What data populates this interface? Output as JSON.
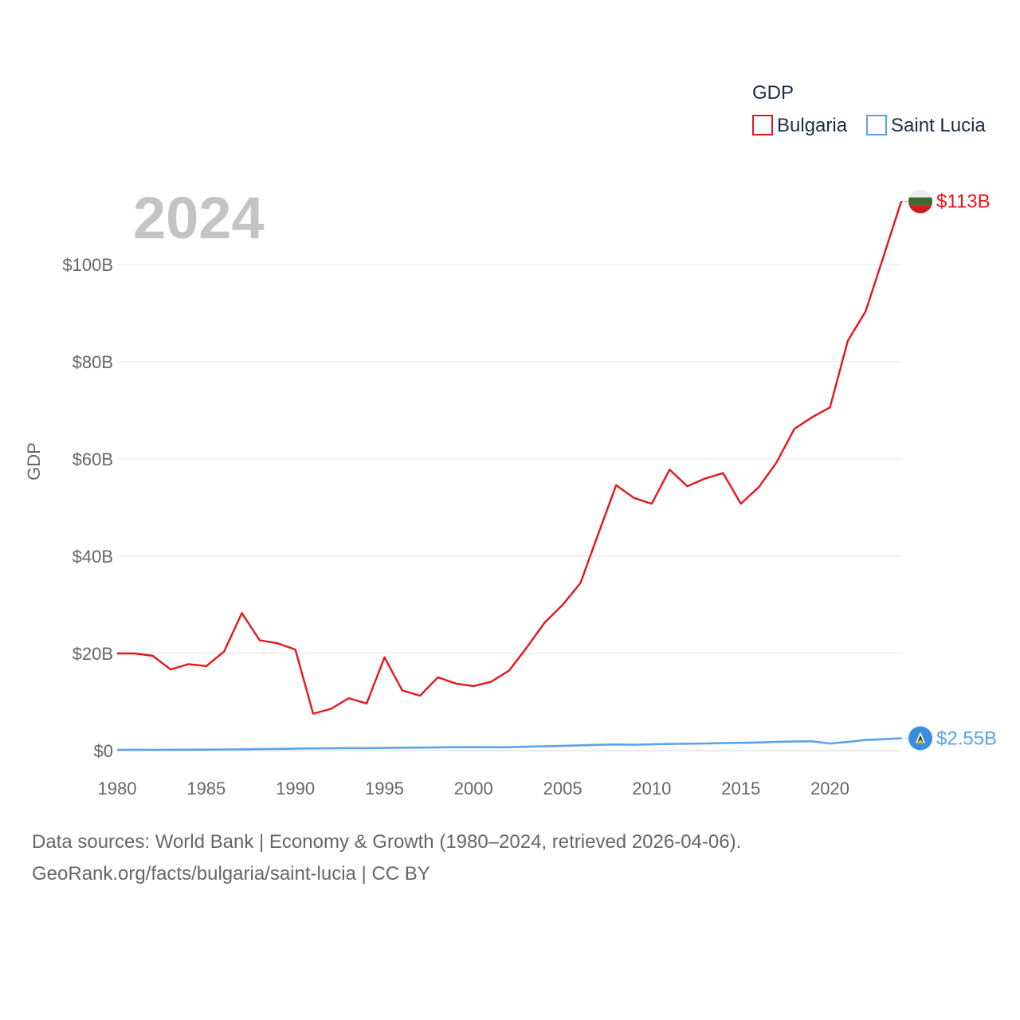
{
  "chart_data": {
    "type": "line",
    "ylabel": "GDP",
    "year_label": "2024",
    "legend": {
      "title": "GDP"
    },
    "x": [
      1980,
      1981,
      1982,
      1983,
      1984,
      1985,
      1986,
      1987,
      1988,
      1989,
      1990,
      1991,
      1992,
      1993,
      1994,
      1995,
      1996,
      1997,
      1998,
      1999,
      2000,
      2001,
      2002,
      2003,
      2004,
      2005,
      2006,
      2007,
      2008,
      2009,
      2010,
      2011,
      2012,
      2013,
      2014,
      2015,
      2016,
      2017,
      2018,
      2019,
      2020,
      2021,
      2022,
      2023,
      2024
    ],
    "xlim": [
      1980,
      2024
    ],
    "ylim": [
      0,
      115
    ],
    "y_unit": "billion USD",
    "x_ticks": [
      "1980",
      "1985",
      "1990",
      "1995",
      "2000",
      "2005",
      "2010",
      "2015",
      "2020"
    ],
    "y_ticks": [
      {
        "value": 0,
        "label": "$0"
      },
      {
        "value": 20,
        "label": "$20B"
      },
      {
        "value": 40,
        "label": "$40B"
      },
      {
        "value": 60,
        "label": "$60B"
      },
      {
        "value": 80,
        "label": "$80B"
      },
      {
        "value": 100,
        "label": "$100B"
      }
    ],
    "series": [
      {
        "name": "Bulgaria",
        "color": "#e8141c",
        "end_label": "$113B",
        "flag_icon": "bulgaria-flag-icon",
        "values": [
          20.0,
          20.0,
          19.5,
          16.7,
          17.8,
          17.4,
          20.4,
          28.3,
          22.7,
          22.1,
          20.8,
          7.6,
          8.6,
          10.8,
          9.7,
          19.2,
          12.4,
          11.3,
          15.1,
          13.8,
          13.3,
          14.2,
          16.5,
          21.3,
          26.4,
          30.0,
          34.5,
          44.6,
          54.6,
          52.0,
          50.8,
          57.8,
          54.4,
          56.0,
          57.1,
          50.8,
          54.2,
          59.3,
          66.2,
          68.6,
          70.6,
          84.3,
          90.4,
          101.6,
          113.0
        ]
      },
      {
        "name": "Saint Lucia",
        "color": "#5ba3e8",
        "end_label": "$2.55B",
        "flag_icon": "saint-lucia-flag-icon",
        "values": [
          0.16,
          0.18,
          0.17,
          0.18,
          0.2,
          0.22,
          0.25,
          0.28,
          0.32,
          0.36,
          0.42,
          0.46,
          0.5,
          0.52,
          0.53,
          0.56,
          0.6,
          0.62,
          0.68,
          0.72,
          0.74,
          0.7,
          0.72,
          0.8,
          0.9,
          1.0,
          1.1,
          1.2,
          1.28,
          1.22,
          1.3,
          1.38,
          1.42,
          1.48,
          1.55,
          1.6,
          1.67,
          1.8,
          1.9,
          1.92,
          1.47,
          1.78,
          2.2,
          2.35,
          2.55
        ]
      }
    ]
  },
  "footer": {
    "line1": "Data sources: World Bank | Economy & Growth (1980–2024, retrieved 2026-04-06).",
    "line2": "GeoRank.org/facts/bulgaria/saint-lucia | CC BY"
  }
}
